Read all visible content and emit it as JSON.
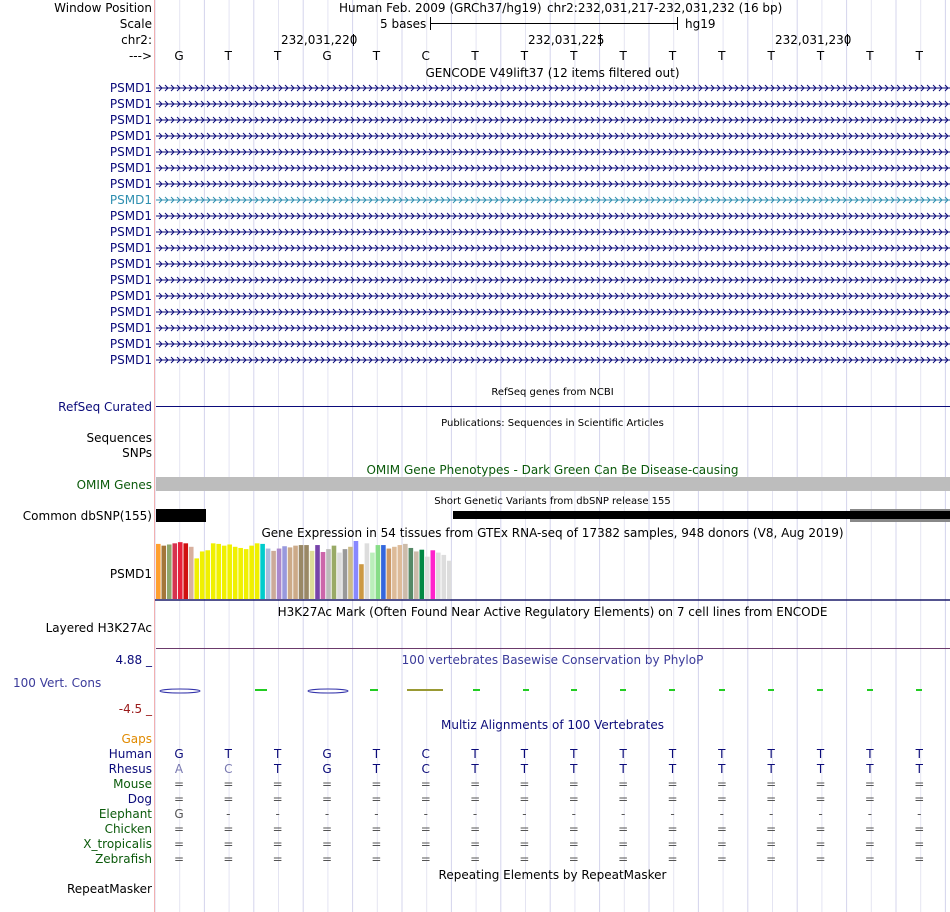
{
  "header": {
    "window_position_label": "Window Position",
    "assembly_text": "Human Feb. 2009 (GRCh37/hg19)",
    "position_text": "chr2:232,031,217-232,031,232 (16 bp)",
    "scale_label": "Scale",
    "scale_text": "5 bases",
    "scale_db": "hg19",
    "chrom_label": "chr2:",
    "coord_ticks": [
      "232,031,220",
      "232,031,225",
      "232,031,230"
    ],
    "strand_label": "--->",
    "bases": [
      "G",
      "T",
      "T",
      "G",
      "T",
      "C",
      "T",
      "T",
      "T",
      "T",
      "T",
      "T",
      "T",
      "T",
      "T",
      "T"
    ]
  },
  "gencode": {
    "title": "GENCODE V49lift37 (12 items filtered out)",
    "genes": [
      "PSMD1",
      "PSMD1",
      "PSMD1",
      "PSMD1",
      "PSMD1",
      "PSMD1",
      "PSMD1",
      "PSMD1",
      "PSMD1",
      "PSMD1",
      "PSMD1",
      "PSMD1",
      "PSMD1",
      "PSMD1",
      "PSMD1",
      "PSMD1",
      "PSMD1",
      "PSMD1"
    ],
    "highlight_color": "#2f8fb0",
    "gene_color": "#0b0b7a"
  },
  "refseq": {
    "title": "RefSeq genes from NCBI",
    "label": "RefSeq Curated"
  },
  "publications": {
    "title": "Publications: Sequences in Scientific Articles",
    "label": "Sequences"
  },
  "snps": {
    "label": "SNPs"
  },
  "omim": {
    "title": "OMIM Gene Phenotypes - Dark Green Can Be Disease-causing",
    "label": "OMIM Genes"
  },
  "dbsnp": {
    "title": "Short Genetic Variants from dbSNP release 155",
    "label": "Common dbSNP(155)"
  },
  "gtex": {
    "title": "Gene Expression in 54 tissues from GTEx RNA-seq of 17382 samples, 948 donors (V8, Aug 2019)",
    "label": "PSMD1"
  },
  "chart_data": {
    "type": "bar",
    "title": "Gene Expression in 54 tissues from GTEx RNA-seq of 17382 samples, 948 donors (V8, Aug 2019)",
    "series": [
      {
        "name": "PSMD1",
        "values": [
          0.95,
          0.92,
          0.94,
          0.96,
          0.98,
          0.96,
          0.9,
          0.7,
          0.82,
          0.84,
          0.96,
          0.95,
          0.92,
          0.94,
          0.9,
          0.88,
          0.86,
          0.92,
          0.96,
          0.95,
          0.87,
          0.83,
          0.87,
          0.91,
          0.89,
          0.92,
          0.93,
          0.93,
          0.83,
          0.93,
          0.81,
          0.86,
          0.92,
          0.8,
          0.86,
          0.9,
          1.0,
          0.6,
          0.96,
          0.8,
          0.93,
          0.93,
          0.87,
          0.9,
          0.93,
          0.95,
          0.88,
          0.82,
          0.85,
          0.73,
          0.84,
          0.8,
          0.76,
          0.66
        ],
        "colors": [
          "#ff9f2f",
          "#a4773a",
          "#8fa66b",
          "#d6334e",
          "#e8203a",
          "#d01010",
          "#d8b09e",
          "#f0f000",
          "#f0f000",
          "#f0f000",
          "#f0f000",
          "#f0f000",
          "#f0f000",
          "#f0f000",
          "#f0f000",
          "#f0f000",
          "#f0f000",
          "#f0f000",
          "#f0f000",
          "#00cccc",
          "#aabbdd",
          "#ccaa99",
          "#aa88cc",
          "#9999dd",
          "#ccaa88",
          "#ccaa88",
          "#998866",
          "#998866",
          "#dddd99",
          "#7744aa",
          "#cc66aa",
          "#bbbbbb",
          "#99aa66",
          "#dddddd",
          "#999999",
          "#ccbb88",
          "#8888ff",
          "#cc9944",
          "#dddddd",
          "#bbeebb",
          "#88dd88",
          "#3366dd",
          "#cc9966",
          "#ddbb99",
          "#ddbb99",
          "#ccbbaa",
          "#558866",
          "#ccbbaa",
          "#008844",
          "#dddddd",
          "#ff22cc",
          "#dddddd",
          "#dddddd",
          "#dddddd"
        ]
      }
    ],
    "xlabel": "",
    "ylabel": "",
    "ylim": [
      0,
      1
    ]
  },
  "h3k27ac": {
    "title": "H3K27Ac Mark (Often Found Near Active Regulatory Elements) on 7 cell lines from ENCODE",
    "label": "Layered H3K27Ac"
  },
  "conservation": {
    "title": "100 vertebrates Basewise Conservation by PhyloP",
    "label": "100 Vert. Cons",
    "ymax": "4.88 _",
    "ymin": "-4.5 _"
  },
  "multiz": {
    "title": "Multiz Alignments of 100 Vertebrates",
    "gaps_label": "Gaps",
    "species": [
      {
        "name": "Human",
        "color": "#0b0b7a",
        "row": [
          "G",
          "T",
          "T",
          "G",
          "T",
          "C",
          "T",
          "T",
          "T",
          "T",
          "T",
          "T",
          "T",
          "T",
          "T",
          "T"
        ]
      },
      {
        "name": "Rhesus",
        "color": "#0b0b7a",
        "row": [
          "A",
          "C",
          "T",
          "G",
          "T",
          "C",
          "T",
          "T",
          "T",
          "T",
          "T",
          "T",
          "T",
          "T",
          "T",
          "T"
        ]
      },
      {
        "name": "Mouse",
        "color": "#0b5a0b",
        "row": [
          "=",
          "=",
          "=",
          "=",
          "=",
          "=",
          "=",
          "=",
          "=",
          "=",
          "=",
          "=",
          "=",
          "=",
          "=",
          "="
        ]
      },
      {
        "name": "Dog",
        "color": "#0b0b7a",
        "row": [
          "=",
          "=",
          "=",
          "=",
          "=",
          "=",
          "=",
          "=",
          "=",
          "=",
          "=",
          "=",
          "=",
          "=",
          "=",
          "="
        ]
      },
      {
        "name": "Elephant",
        "color": "#0b5a0b",
        "row": [
          "G",
          "-",
          "-",
          "-",
          "-",
          "-",
          "-",
          "-",
          "-",
          "-",
          "-",
          "-",
          "-",
          "-",
          "-",
          "-"
        ]
      },
      {
        "name": "Chicken",
        "color": "#0b5a0b",
        "row": [
          "=",
          "=",
          "=",
          "=",
          "=",
          "=",
          "=",
          "=",
          "=",
          "=",
          "=",
          "=",
          "=",
          "=",
          "=",
          "="
        ]
      },
      {
        "name": "X_tropicalis",
        "color": "#0b5a0b",
        "row": [
          "=",
          "=",
          "=",
          "=",
          "=",
          "=",
          "=",
          "=",
          "=",
          "=",
          "=",
          "=",
          "=",
          "=",
          "=",
          "="
        ]
      },
      {
        "name": "Zebrafish",
        "color": "#0b5a0b",
        "row": [
          "=",
          "=",
          "=",
          "=",
          "=",
          "=",
          "=",
          "=",
          "=",
          "=",
          "=",
          "=",
          "=",
          "=",
          "=",
          "="
        ]
      }
    ]
  },
  "repeatmasker": {
    "title": "Repeating Elements by RepeatMasker",
    "label": "RepeatMasker"
  }
}
